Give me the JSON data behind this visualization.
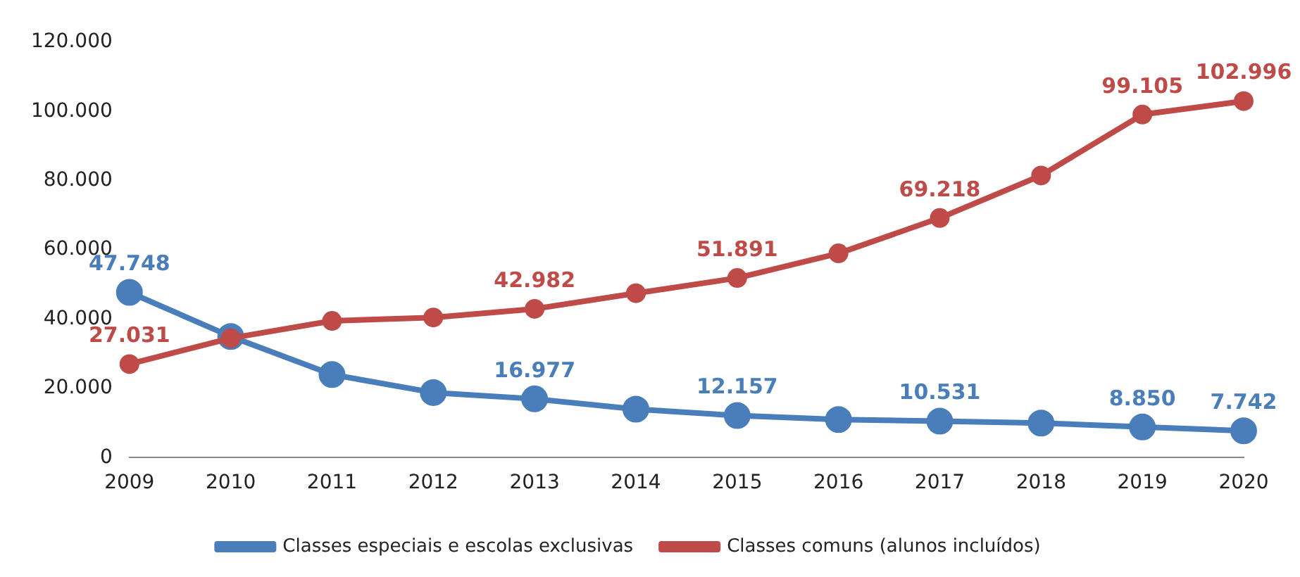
{
  "chart_data": {
    "type": "line",
    "categories": [
      "2009",
      "2010",
      "2011",
      "2012",
      "2013",
      "2014",
      "2015",
      "2016",
      "2017",
      "2018",
      "2019",
      "2020"
    ],
    "series": [
      {
        "name": "Classes especiais e escolas exclusivas",
        "color": "#4a7ebb",
        "values": [
          47748,
          35000,
          24000,
          18800,
          16977,
          14000,
          12157,
          11000,
          10531,
          10000,
          8850,
          7742
        ],
        "value_labels": [
          "47.748",
          null,
          null,
          null,
          "16.977",
          null,
          "12.157",
          null,
          "10.531",
          null,
          "8.850",
          "7.742"
        ]
      },
      {
        "name": "Classes comuns (alunos incluídos)",
        "color": "#be4b48",
        "values": [
          27031,
          34500,
          39500,
          40500,
          42982,
          47500,
          51891,
          59000,
          69218,
          81500,
          99105,
          102996
        ],
        "value_labels": [
          "27.031",
          null,
          null,
          null,
          "42.982",
          null,
          "51.891",
          null,
          "69.218",
          null,
          "99.105",
          "102.996"
        ]
      }
    ],
    "ylim": [
      0,
      120000
    ],
    "yticks": [
      {
        "value": 0,
        "label": "0"
      },
      {
        "value": 20000,
        "label": "20.000"
      },
      {
        "value": 40000,
        "label": "40.000"
      },
      {
        "value": 60000,
        "label": "60.000"
      },
      {
        "value": 80000,
        "label": "80.000"
      },
      {
        "value": 100000,
        "label": "100.000"
      },
      {
        "value": 120000,
        "label": "120.000"
      }
    ],
    "grid": false,
    "legend": "bottom",
    "marker": "circle",
    "line_style": "solid"
  }
}
